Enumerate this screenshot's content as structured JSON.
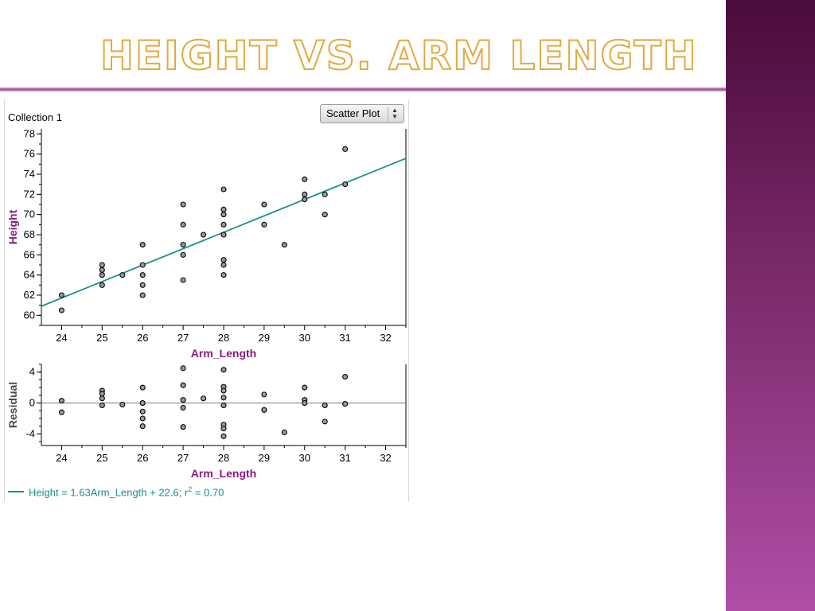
{
  "slide": {
    "title": "HEIGHT VS. ARM LENGTH"
  },
  "collection_label": "Collection 1",
  "plot_type_select": {
    "selected": "Scatter Plot"
  },
  "colors": {
    "fit_line": "#1a8f8c",
    "axis_title": "#8b1a7e",
    "points": "#888888",
    "sidebar": "#7a2a6a",
    "title_outline": "#e0aa3e"
  },
  "equation": {
    "text": "Height = 1.63Arm_Length + 22.6; r",
    "sup": "2",
    "tail": " = 0.70"
  },
  "chart_data": [
    {
      "type": "scatter",
      "title": "",
      "xlabel": "Arm_Length",
      "ylabel": "Height",
      "xlim": [
        23.5,
        32.5
      ],
      "ylim": [
        59,
        78.5
      ],
      "x_ticks": [
        "24",
        "25",
        "26",
        "27",
        "28",
        "29",
        "30",
        "31",
        "32"
      ],
      "y_ticks": [
        "60",
        "62",
        "64",
        "66",
        "68",
        "70",
        "72",
        "74",
        "76",
        "78"
      ],
      "grid": false,
      "points": [
        [
          24,
          62
        ],
        [
          24,
          60.5
        ],
        [
          25,
          65
        ],
        [
          25,
          64.5
        ],
        [
          25,
          64
        ],
        [
          25,
          63
        ],
        [
          25.5,
          64
        ],
        [
          26,
          67
        ],
        [
          26,
          65
        ],
        [
          26,
          64
        ],
        [
          26,
          63
        ],
        [
          26,
          62
        ],
        [
          27,
          71
        ],
        [
          27,
          69
        ],
        [
          27,
          67
        ],
        [
          27,
          66
        ],
        [
          27,
          63.5
        ],
        [
          27.5,
          68
        ],
        [
          28,
          72.5
        ],
        [
          28,
          70.5
        ],
        [
          28,
          70
        ],
        [
          28,
          69
        ],
        [
          28,
          68
        ],
        [
          28,
          65.5
        ],
        [
          28,
          65
        ],
        [
          28,
          64
        ],
        [
          29,
          71
        ],
        [
          29,
          69
        ],
        [
          29.5,
          67
        ],
        [
          30,
          73.5
        ],
        [
          30,
          72
        ],
        [
          30,
          71.5
        ],
        [
          30.5,
          72
        ],
        [
          30.5,
          70
        ],
        [
          31,
          76.5
        ],
        [
          31,
          73
        ]
      ],
      "fit_line": {
        "slope": 1.63,
        "intercept": 22.6,
        "r2": 0.7
      }
    },
    {
      "type": "scatter",
      "title": "",
      "xlabel": "Arm_Length",
      "ylabel": "Residual",
      "xlim": [
        23.5,
        32.5
      ],
      "ylim": [
        -5.5,
        5
      ],
      "x_ticks": [
        "24",
        "25",
        "26",
        "27",
        "28",
        "29",
        "30",
        "31",
        "32"
      ],
      "y_ticks": [
        "-4",
        "0",
        "4"
      ],
      "grid": false,
      "zero_line": true,
      "points": [
        [
          24,
          0.3
        ],
        [
          24,
          -1.2
        ],
        [
          25,
          1.6
        ],
        [
          25,
          1.2
        ],
        [
          25,
          0.6
        ],
        [
          25,
          -0.3
        ],
        [
          25.5,
          -0.2
        ],
        [
          26,
          2
        ],
        [
          26,
          0
        ],
        [
          26,
          -1.1
        ],
        [
          26,
          -2
        ],
        [
          26,
          -3
        ],
        [
          27,
          4.5
        ],
        [
          27,
          2.3
        ],
        [
          27,
          0.4
        ],
        [
          27,
          -0.6
        ],
        [
          27,
          -3.1
        ],
        [
          27.5,
          0.6
        ],
        [
          28,
          4.3
        ],
        [
          28,
          2.1
        ],
        [
          28,
          1.6
        ],
        [
          28,
          0.7
        ],
        [
          28,
          -0.3
        ],
        [
          28,
          -2.8
        ],
        [
          28,
          -3.3
        ],
        [
          28,
          -4.3
        ],
        [
          29,
          1.1
        ],
        [
          29,
          -0.9
        ],
        [
          29.5,
          -3.8
        ],
        [
          30,
          2
        ],
        [
          30,
          0.4
        ],
        [
          30,
          0
        ],
        [
          30.5,
          -0.3
        ],
        [
          30.5,
          -2.4
        ],
        [
          31,
          3.4
        ],
        [
          31,
          -0.1
        ]
      ]
    }
  ]
}
